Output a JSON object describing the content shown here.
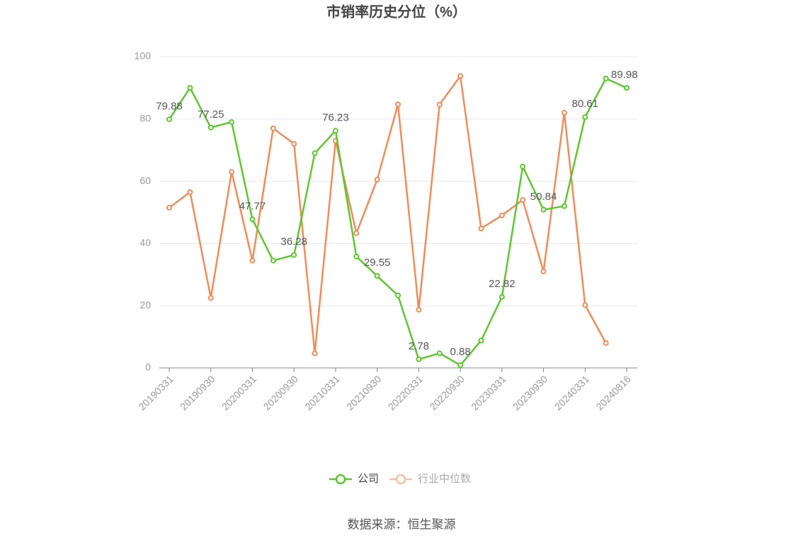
{
  "chart_data": {
    "type": "line",
    "title": "市销率历史分位（%）",
    "categories": [
      "20190331",
      null,
      "20190930",
      null,
      "20200331",
      null,
      "20200930",
      null,
      "20210331",
      null,
      "20210930",
      null,
      "20220331",
      null,
      "20220930",
      null,
      "20230331",
      null,
      "20230930",
      null,
      "20240331",
      null,
      "20240816"
    ],
    "series": [
      {
        "name": "公司",
        "color": "#5ec72f",
        "values": [
          79.88,
          90,
          77.25,
          79,
          47.77,
          34.5,
          36.28,
          69,
          76.23,
          35.8,
          29.55,
          23.3,
          2.78,
          4.7,
          0.88,
          8.8,
          22.82,
          64.7,
          50.84,
          52,
          80.61,
          93,
          89.98
        ],
        "value_labels": [
          "79.88",
          null,
          "77.25",
          null,
          "47.77",
          null,
          "36.28",
          null,
          "76.23",
          null,
          "29.55",
          null,
          "2.78",
          null,
          "0.88",
          null,
          "22.82",
          null,
          "50.84",
          null,
          "80.61",
          null,
          "89.98"
        ]
      },
      {
        "name": "行业中位数",
        "color": "#f08c5a",
        "values": [
          51.5,
          56.5,
          22.5,
          63,
          34.5,
          77,
          72,
          4.7,
          73,
          43.3,
          60.5,
          84.7,
          18.7,
          84.6,
          93.8,
          44.8,
          49,
          54,
          31,
          82,
          20.2,
          8,
          null
        ]
      }
    ],
    "ylim": [
      0,
      100
    ],
    "yticks": [
      0,
      20,
      40,
      60,
      80,
      100
    ],
    "grid": true,
    "legend": "bottom",
    "source": "数据来源：恒生聚源"
  }
}
